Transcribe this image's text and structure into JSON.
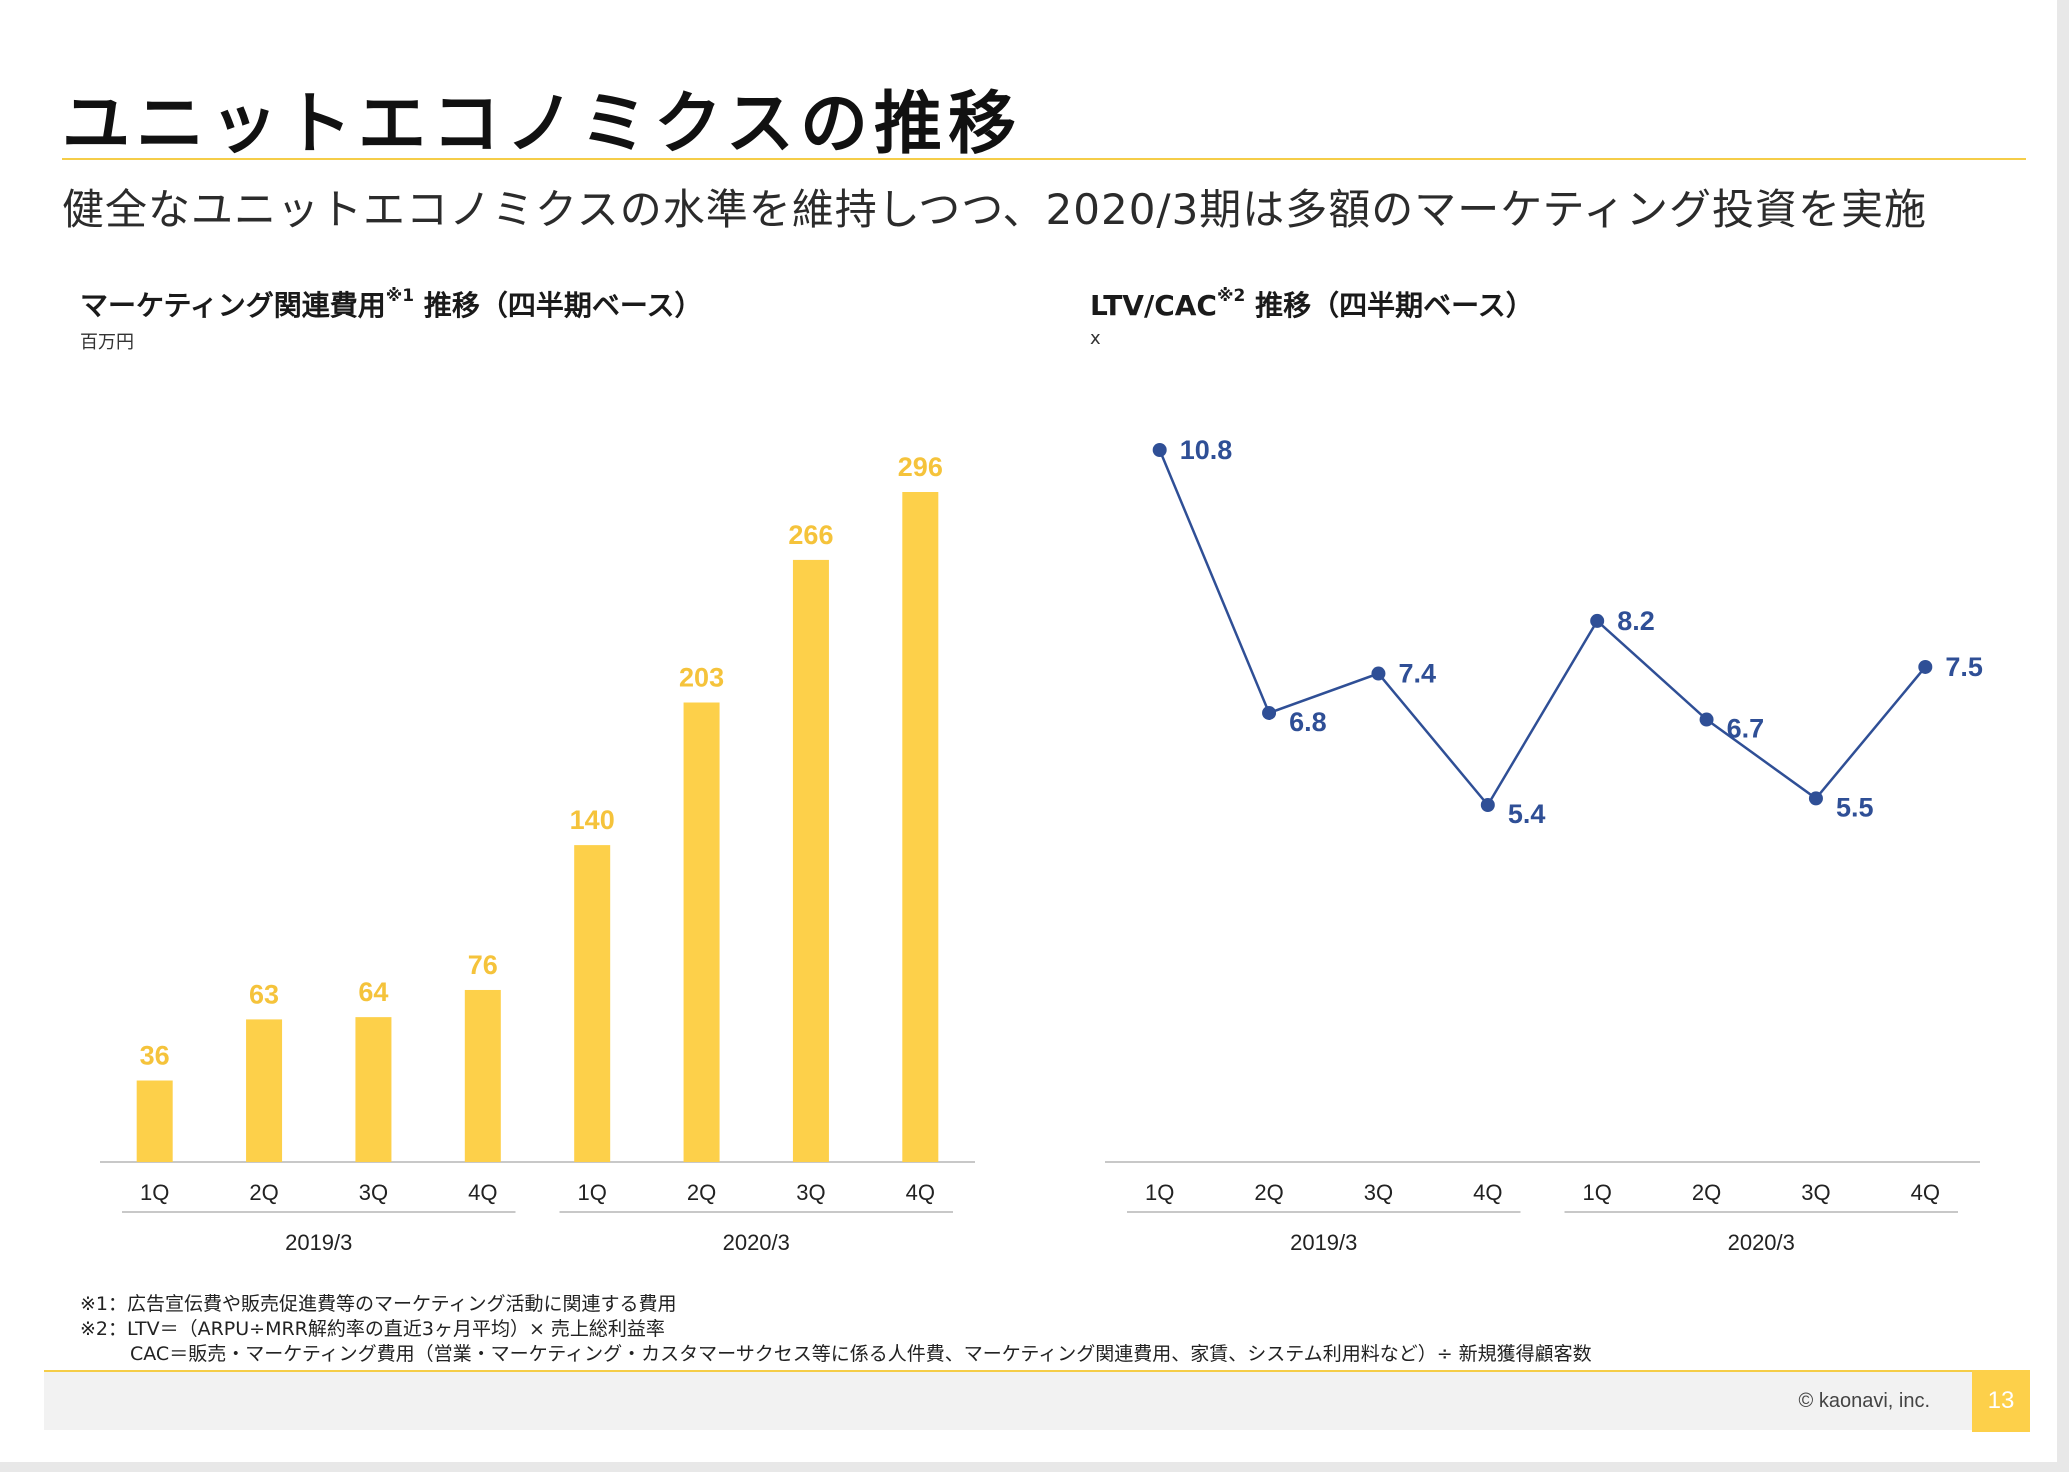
{
  "title": "ユニットエコノミクスの推移",
  "subtitle": "健全なユニットエコノミクスの水準を維持しつつ、2020/3期は多額のマーケティング投資を実施",
  "left_chart": {
    "title_main": "マーケティング関連費用",
    "title_sup": "※1",
    "title_tail": "推移（四半期ベース）",
    "unit": "百万円"
  },
  "right_chart": {
    "title_main": "LTV/CAC",
    "title_sup": "※2",
    "title_tail": "推移（四半期ベース）",
    "unit": "x"
  },
  "chart_data": [
    {
      "type": "bar",
      "categories": [
        "1Q",
        "2Q",
        "3Q",
        "4Q",
        "1Q",
        "2Q",
        "3Q",
        "4Q"
      ],
      "groups": [
        {
          "label": "2019/3",
          "span": 4
        },
        {
          "label": "2020/3",
          "span": 4
        }
      ],
      "values": [
        36,
        63,
        64,
        76,
        140,
        203,
        266,
        296
      ],
      "ylim": [
        0,
        296
      ],
      "ylabel": "百万円",
      "color": "#fdd04a",
      "label_color": "#f5c33b"
    },
    {
      "type": "line",
      "categories": [
        "1Q",
        "2Q",
        "3Q",
        "4Q",
        "1Q",
        "2Q",
        "3Q",
        "4Q"
      ],
      "groups": [
        {
          "label": "2019/3",
          "span": 4
        },
        {
          "label": "2020/3",
          "span": 4
        }
      ],
      "values": [
        10.8,
        6.8,
        7.4,
        5.4,
        8.2,
        6.7,
        5.5,
        7.5
      ],
      "ylabel": "x",
      "color": "#2f4f96"
    }
  ],
  "notes": {
    "note1": "※1：広告宣伝費や販売促進費等のマーケティング活動に関連する費用",
    "note2": "※2：LTV＝（ARPU÷MRR解約率の直近3ヶ月平均）× 売上総利益率",
    "note3": "CAC＝販売・マーケティング費用（営業・マーケティング・カスタマーサクセス等に係る人件費、マーケティング関連費用、家賃、システム利用料など）÷ 新規獲得顧客数"
  },
  "footer": {
    "copyright": "© kaonavi, inc.",
    "page_number": "13"
  }
}
